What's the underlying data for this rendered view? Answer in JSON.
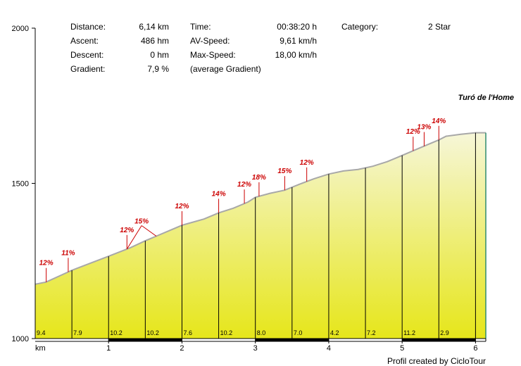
{
  "stats": {
    "distance_label": "Distance:",
    "distance_value": "6,14 km",
    "ascent_label": "Ascent:",
    "ascent_value": "486 hm",
    "descent_label": "Descent:",
    "descent_value": "0 hm",
    "gradient_label": "Gradient:",
    "gradient_value": "7,9 %",
    "time_label": "Time:",
    "time_value": "00:38:20 h",
    "avspeed_label": "AV-Speed:",
    "avspeed_value": "9,61 km/h",
    "maxspeed_label": "Max-Speed:",
    "maxspeed_value": "18,00 km/h",
    "avg_gradient_note": "(average Gradient)",
    "category_label": "Category:",
    "category_value": "2 Star"
  },
  "peak_name": "Turó de l'Home",
  "credit": "Profil created by CicloTour",
  "colors": {
    "fill_top": "#f6f6d8",
    "fill_bottom": "#e6e61a",
    "profile_line": "#a8a8a8",
    "marker_red": "#cc0000",
    "axis": "#000000",
    "end_edge": "#2e8b6e"
  },
  "chart_data": {
    "type": "area",
    "title": "",
    "xlabel": "km",
    "ylabel": "",
    "xlim": [
      0,
      6.14
    ],
    "ylim": [
      1000,
      2000
    ],
    "x_ticks": [
      1,
      2,
      3,
      4,
      5,
      6
    ],
    "y_ticks": [
      1000,
      1500,
      2000
    ],
    "x_tick_labels": [
      "1",
      "2",
      "3",
      "4",
      "5",
      "6"
    ],
    "y_tick_labels": [
      "1000",
      "1500",
      "2000"
    ],
    "profile": {
      "x": [
        0,
        0.15,
        0.5,
        1.0,
        1.3,
        1.5,
        1.65,
        2.0,
        2.3,
        2.5,
        2.7,
        2.9,
        3.0,
        3.2,
        3.4,
        3.6,
        3.8,
        4.0,
        4.2,
        4.4,
        4.6,
        4.8,
        5.0,
        5.15,
        5.3,
        5.5,
        5.6,
        5.8,
        6.0,
        6.14
      ],
      "y": [
        1175,
        1182,
        1220,
        1265,
        1293,
        1315,
        1330,
        1365,
        1385,
        1405,
        1420,
        1440,
        1455,
        1468,
        1478,
        1497,
        1515,
        1530,
        1540,
        1545,
        1555,
        1570,
        1590,
        1605,
        1620,
        1640,
        1652,
        1658,
        1663,
        1663
      ]
    },
    "segments": {
      "boundaries": [
        0,
        0.5,
        1.0,
        1.5,
        2.0,
        2.5,
        3.0,
        3.5,
        4.0,
        4.5,
        5.0,
        5.5,
        6.0,
        6.14
      ],
      "gradient_labels": [
        "9.4",
        "7.9",
        "10.2",
        "10.2",
        "7.6",
        "10.2",
        "8.0",
        "7.0",
        "4.2",
        "7.2",
        "11.2",
        "2.9"
      ]
    },
    "markers": [
      {
        "x": 0.15,
        "label": "12%"
      },
      {
        "x": 0.45,
        "label": "11%"
      },
      {
        "x": 1.25,
        "label": "12%"
      },
      {
        "x": 1.45,
        "label": "15%"
      },
      {
        "x": 2.0,
        "label": "12%"
      },
      {
        "x": 2.5,
        "label": "14%"
      },
      {
        "x": 2.85,
        "label": "12%"
      },
      {
        "x": 3.05,
        "label": "18%"
      },
      {
        "x": 3.4,
        "label": "15%"
      },
      {
        "x": 3.7,
        "label": "12%"
      },
      {
        "x": 5.15,
        "label": "12%"
      },
      {
        "x": 5.3,
        "label": "13%"
      },
      {
        "x": 5.5,
        "label": "14%"
      }
    ]
  }
}
